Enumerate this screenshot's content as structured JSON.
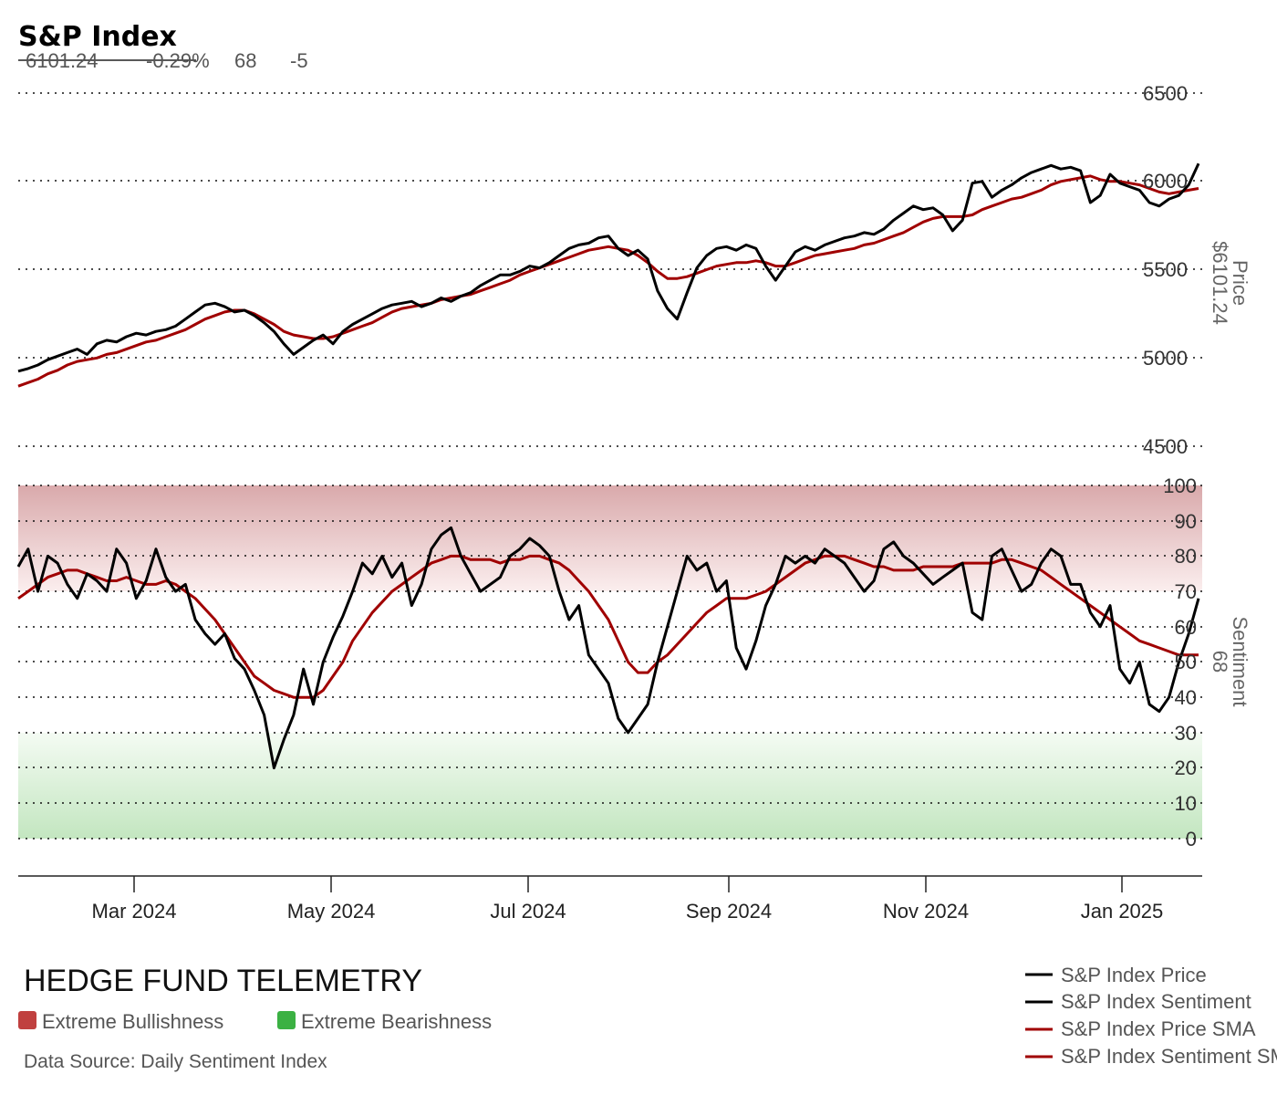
{
  "header": {
    "title": "S&P Index",
    "price": "6101.24",
    "change": "-0.29%",
    "sentiment": "68",
    "sentiment_change": "-5"
  },
  "price_axis": {
    "title": "Price",
    "value": "$6101.24",
    "ticks": [
      "6500",
      "6000",
      "5500",
      "5000",
      "4500"
    ]
  },
  "sentiment_axis": {
    "title": "Sentiment",
    "value": "68",
    "ticks": [
      "100",
      "90",
      "80",
      "70",
      "60",
      "50",
      "40",
      "30",
      "20",
      "10",
      "0"
    ]
  },
  "x_axis": {
    "ticks": [
      "Mar 2024",
      "May 2024",
      "Jul 2024",
      "Sep 2024",
      "Nov 2024",
      "Jan 2025"
    ]
  },
  "branding": {
    "name": "HEDGE FUND TELEMETRY",
    "source": "Data Source: Daily Sentiment Index"
  },
  "zones": [
    {
      "label": "Extreme Bullishness",
      "color": "#c0403f"
    },
    {
      "label": "Extreme Bearishness",
      "color": "#3bb143"
    }
  ],
  "legend": [
    {
      "label": "S&P Index Price",
      "color": "#000000"
    },
    {
      "label": "S&P Index Sentiment",
      "color": "#000000"
    },
    {
      "label": "S&P Index Price SMA",
      "color": "#a00000"
    },
    {
      "label": "S&P Index Sentiment SMA",
      "color": "#a00000"
    }
  ],
  "colors": {
    "price": "#000000",
    "sma": "#a00000",
    "bullish_zone": "#d9a9ab",
    "bearish_zone": "#c3e6c0"
  },
  "chart_data": [
    {
      "type": "line",
      "title": "S&P Index Price",
      "ylabel": "Price",
      "ylim": [
        4500,
        6500
      ],
      "x": [
        0,
        3,
        6,
        9,
        12,
        15,
        18,
        21,
        24,
        27,
        30,
        33,
        36,
        39,
        42,
        45,
        48,
        51,
        54,
        57,
        60,
        63,
        66,
        69,
        72,
        75,
        78,
        81,
        84,
        87,
        90,
        93,
        96,
        99,
        102,
        105,
        108,
        111,
        114,
        117,
        120,
        123,
        126,
        129,
        132,
        135,
        138,
        141,
        144,
        147,
        150,
        153,
        156,
        159,
        162,
        165,
        168,
        171,
        174,
        177,
        180,
        183,
        186,
        189,
        192,
        195,
        198,
        201,
        204,
        207,
        210,
        213,
        216,
        219,
        222,
        225,
        228,
        231,
        234,
        237,
        240,
        243,
        246,
        249,
        252,
        255,
        258,
        261,
        264,
        267,
        270,
        273,
        276,
        279,
        282,
        285,
        288,
        291,
        294,
        297,
        300,
        303,
        306,
        309,
        312,
        315,
        318,
        321,
        324,
        327,
        330,
        333,
        336,
        339,
        342,
        345,
        348,
        351,
        354,
        357,
        360
      ],
      "series": [
        {
          "name": "S&P Index Price",
          "values": [
            4925,
            4940,
            4960,
            4990,
            5010,
            5030,
            5050,
            5020,
            5080,
            5100,
            5090,
            5120,
            5140,
            5130,
            5150,
            5160,
            5180,
            5220,
            5260,
            5300,
            5310,
            5290,
            5260,
            5270,
            5240,
            5200,
            5150,
            5080,
            5020,
            5060,
            5100,
            5130,
            5080,
            5150,
            5190,
            5220,
            5250,
            5280,
            5300,
            5310,
            5320,
            5290,
            5310,
            5340,
            5320,
            5350,
            5370,
            5410,
            5440,
            5470,
            5470,
            5490,
            5520,
            5510,
            5540,
            5580,
            5620,
            5640,
            5650,
            5680,
            5690,
            5620,
            5580,
            5610,
            5560,
            5380,
            5280,
            5220,
            5370,
            5510,
            5580,
            5620,
            5630,
            5610,
            5640,
            5620,
            5520,
            5440,
            5520,
            5600,
            5630,
            5610,
            5640,
            5660,
            5680,
            5690,
            5710,
            5700,
            5730,
            5780,
            5820,
            5860,
            5840,
            5850,
            5810,
            5720,
            5780,
            5990,
            6000,
            5910,
            5950,
            5980,
            6020,
            6050,
            6070,
            6090,
            6070,
            6080,
            6060,
            5880,
            5920,
            6040,
            5990,
            5970,
            5950,
            5880,
            5860,
            5900,
            5920,
            5980,
            6101.24
          ]
        },
        {
          "name": "S&P Index Price SMA",
          "values": [
            4840,
            4860,
            4880,
            4910,
            4930,
            4960,
            4980,
            4990,
            5000,
            5020,
            5030,
            5050,
            5070,
            5090,
            5100,
            5120,
            5140,
            5160,
            5190,
            5220,
            5240,
            5260,
            5270,
            5270,
            5250,
            5220,
            5190,
            5150,
            5130,
            5120,
            5110,
            5110,
            5120,
            5140,
            5160,
            5180,
            5200,
            5230,
            5260,
            5280,
            5290,
            5300,
            5310,
            5330,
            5340,
            5350,
            5360,
            5380,
            5400,
            5420,
            5440,
            5470,
            5490,
            5510,
            5530,
            5550,
            5570,
            5590,
            5610,
            5620,
            5630,
            5620,
            5610,
            5580,
            5540,
            5490,
            5450,
            5450,
            5460,
            5480,
            5500,
            5520,
            5530,
            5540,
            5540,
            5550,
            5540,
            5520,
            5520,
            5540,
            5560,
            5580,
            5590,
            5600,
            5610,
            5620,
            5640,
            5650,
            5670,
            5690,
            5710,
            5740,
            5770,
            5790,
            5800,
            5800,
            5800,
            5810,
            5840,
            5860,
            5880,
            5900,
            5910,
            5930,
            5950,
            5980,
            6000,
            6010,
            6020,
            6030,
            6010,
            6000,
            6000,
            5990,
            5980,
            5960,
            5940,
            5930,
            5940,
            5950,
            5960
          ]
        }
      ]
    },
    {
      "type": "line",
      "title": "S&P Index Sentiment",
      "ylabel": "Sentiment",
      "ylim": [
        0,
        100
      ],
      "x": [
        0,
        3,
        6,
        9,
        12,
        15,
        18,
        21,
        24,
        27,
        30,
        33,
        36,
        39,
        42,
        45,
        48,
        51,
        54,
        57,
        60,
        63,
        66,
        69,
        72,
        75,
        78,
        81,
        84,
        87,
        90,
        93,
        96,
        99,
        102,
        105,
        108,
        111,
        114,
        117,
        120,
        123,
        126,
        129,
        132,
        135,
        138,
        141,
        144,
        147,
        150,
        153,
        156,
        159,
        162,
        165,
        168,
        171,
        174,
        177,
        180,
        183,
        186,
        189,
        192,
        195,
        198,
        201,
        204,
        207,
        210,
        213,
        216,
        219,
        222,
        225,
        228,
        231,
        234,
        237,
        240,
        243,
        246,
        249,
        252,
        255,
        258,
        261,
        264,
        267,
        270,
        273,
        276,
        279,
        282,
        285,
        288,
        291,
        294,
        297,
        300,
        303,
        306,
        309,
        312,
        315,
        318,
        321,
        324,
        327,
        330,
        333,
        336,
        339,
        342,
        345,
        348,
        351,
        354,
        357,
        360
      ],
      "series": [
        {
          "name": "S&P Index Sentiment",
          "values": [
            77,
            82,
            70,
            80,
            78,
            72,
            68,
            75,
            73,
            70,
            82,
            78,
            68,
            73,
            82,
            74,
            70,
            72,
            62,
            58,
            55,
            58,
            51,
            48,
            42,
            35,
            20,
            28,
            35,
            48,
            38,
            50,
            57,
            63,
            70,
            78,
            75,
            80,
            74,
            78,
            66,
            72,
            82,
            86,
            88,
            80,
            75,
            70,
            72,
            74,
            80,
            82,
            85,
            83,
            80,
            70,
            62,
            66,
            52,
            48,
            44,
            34,
            30,
            34,
            38,
            50,
            60,
            70,
            80,
            76,
            78,
            70,
            73,
            54,
            48,
            56,
            66,
            72,
            80,
            78,
            80,
            78,
            82,
            80,
            78,
            74,
            70,
            73,
            82,
            84,
            80,
            78,
            75,
            72,
            74,
            76,
            78,
            64,
            62,
            80,
            82,
            76,
            70,
            72,
            78,
            82,
            80,
            72,
            72,
            64,
            60,
            66,
            48,
            44,
            50,
            38,
            36,
            40,
            50,
            58,
            68
          ]
        },
        {
          "name": "S&P Index Sentiment SMA",
          "values": [
            68,
            70,
            72,
            74,
            75,
            76,
            76,
            75,
            74,
            73,
            73,
            74,
            73,
            72,
            72,
            73,
            72,
            70,
            68,
            65,
            62,
            58,
            54,
            50,
            46,
            44,
            42,
            41,
            40,
            40,
            40,
            42,
            46,
            50,
            56,
            60,
            64,
            67,
            70,
            72,
            74,
            76,
            78,
            79,
            80,
            80,
            79,
            79,
            79,
            78,
            79,
            79,
            80,
            80,
            79,
            78,
            76,
            73,
            70,
            66,
            62,
            56,
            50,
            47,
            47,
            50,
            52,
            55,
            58,
            61,
            64,
            66,
            68,
            68,
            68,
            69,
            70,
            72,
            74,
            76,
            78,
            79,
            80,
            80,
            80,
            79,
            78,
            77,
            77,
            76,
            76,
            76,
            77,
            77,
            77,
            77,
            78,
            78,
            78,
            78,
            79,
            79,
            78,
            77,
            76,
            74,
            72,
            70,
            68,
            66,
            64,
            62,
            60,
            58,
            56,
            55,
            54,
            53,
            52,
            52,
            52
          ]
        }
      ]
    }
  ]
}
